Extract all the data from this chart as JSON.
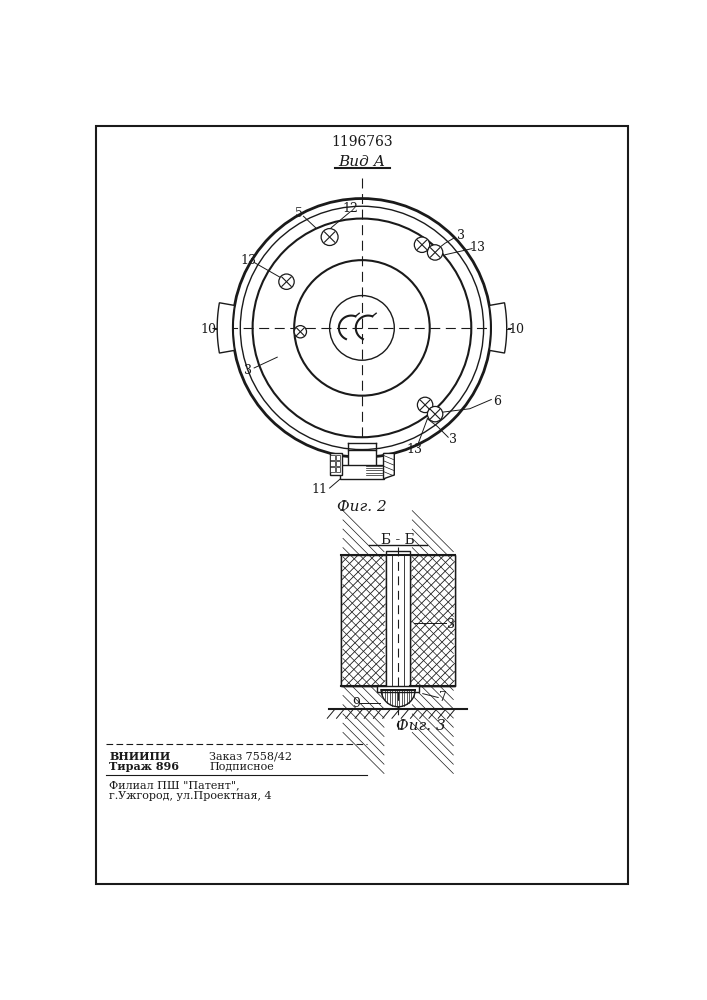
{
  "patent_number": "1196763",
  "view_label": "Вид А",
  "fig2_label": "Фиг. 2",
  "fig3_label": "Фиг. 3",
  "section_label": "Б - Б",
  "bg_color": "#ffffff",
  "line_color": "#1a1a1a"
}
